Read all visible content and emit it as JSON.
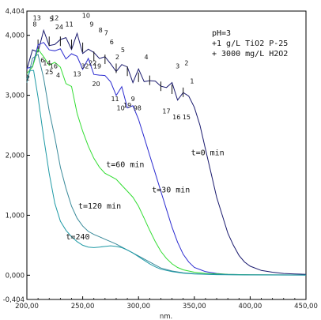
{
  "chart_data": {
    "type": "line",
    "xlabel": "nm.",
    "ylabel": "",
    "xlim": [
      200,
      450
    ],
    "ylim": [
      -404,
      4404
    ],
    "xticks": [
      "200,00",
      "250,00",
      "300,00",
      "350,00",
      "400,00",
      "450,00"
    ],
    "yticks": [
      {
        "value": -404,
        "label": "-0,404"
      },
      {
        "value": 0,
        "label": "0,000"
      },
      {
        "value": 1000,
        "label": "1,000"
      },
      {
        "value": 2000,
        "label": "2,000"
      },
      {
        "value": 3000,
        "label": "3,000"
      },
      {
        "value": 4000,
        "label": "4,000"
      },
      {
        "value": 4404,
        "label": "4,404"
      }
    ],
    "legend": {
      "position": "top-right",
      "lines": [
        "pH=3",
        "+1 g/L TiO2 P-25",
        "+ 3000 mg/L H2O2"
      ]
    },
    "series": [
      {
        "name": "t=0 min",
        "color": "#1a1a6e",
        "label_at": [
          347,
          2000
        ],
        "points": [
          [
            200,
            3400
          ],
          [
            205,
            3700
          ],
          [
            210,
            3850
          ],
          [
            215,
            3950
          ],
          [
            220,
            3900
          ],
          [
            225,
            3850
          ],
          [
            230,
            3900
          ],
          [
            235,
            3950
          ],
          [
            240,
            3850
          ],
          [
            245,
            3900
          ],
          [
            250,
            3800
          ],
          [
            255,
            3750
          ],
          [
            260,
            3650
          ],
          [
            265,
            3700
          ],
          [
            270,
            3600
          ],
          [
            275,
            3500
          ],
          [
            280,
            3450
          ],
          [
            285,
            3500
          ],
          [
            290,
            3400
          ],
          [
            295,
            3350
          ],
          [
            300,
            3300
          ],
          [
            305,
            3300
          ],
          [
            310,
            3250
          ],
          [
            315,
            3200
          ],
          [
            320,
            3150
          ],
          [
            325,
            3200
          ],
          [
            330,
            3100
          ],
          [
            335,
            3000
          ],
          [
            340,
            3050
          ],
          [
            345,
            2900
          ],
          [
            350,
            2800
          ],
          [
            355,
            2500
          ],
          [
            360,
            2100
          ],
          [
            365,
            1700
          ],
          [
            370,
            1300
          ],
          [
            375,
            1000
          ],
          [
            380,
            700
          ],
          [
            385,
            500
          ],
          [
            390,
            330
          ],
          [
            395,
            220
          ],
          [
            400,
            150
          ],
          [
            410,
            80
          ],
          [
            420,
            50
          ],
          [
            430,
            30
          ],
          [
            440,
            20
          ],
          [
            450,
            15
          ]
        ]
      },
      {
        "name": "t=30 min",
        "color": "#2b2bd0",
        "label_at": [
          312,
          1380
        ],
        "points": [
          [
            200,
            3300
          ],
          [
            205,
            3600
          ],
          [
            210,
            3800
          ],
          [
            215,
            3850
          ],
          [
            220,
            3800
          ],
          [
            225,
            3750
          ],
          [
            230,
            3700
          ],
          [
            235,
            3700
          ],
          [
            240,
            3650
          ],
          [
            245,
            3600
          ],
          [
            250,
            3550
          ],
          [
            255,
            3500
          ],
          [
            260,
            3400
          ],
          [
            265,
            3350
          ],
          [
            270,
            3300
          ],
          [
            275,
            3200
          ],
          [
            280,
            3100
          ],
          [
            285,
            3000
          ],
          [
            290,
            2900
          ],
          [
            295,
            2800
          ],
          [
            300,
            2600
          ],
          [
            305,
            2300
          ],
          [
            310,
            2000
          ],
          [
            315,
            1700
          ],
          [
            320,
            1400
          ],
          [
            325,
            1100
          ],
          [
            330,
            800
          ],
          [
            335,
            550
          ],
          [
            340,
            350
          ],
          [
            345,
            220
          ],
          [
            350,
            130
          ],
          [
            360,
            60
          ],
          [
            370,
            30
          ],
          [
            380,
            15
          ],
          [
            400,
            8
          ],
          [
            450,
            5
          ]
        ]
      },
      {
        "name": "t=60 min",
        "color": "#33dd33",
        "label_at": [
          271,
          1800
        ],
        "points": [
          [
            200,
            3350
          ],
          [
            205,
            3550
          ],
          [
            210,
            3700
          ],
          [
            215,
            3650
          ],
          [
            220,
            3550
          ],
          [
            225,
            3500
          ],
          [
            230,
            3450
          ],
          [
            235,
            3300
          ],
          [
            240,
            3000
          ],
          [
            245,
            2700
          ],
          [
            250,
            2400
          ],
          [
            255,
            2150
          ],
          [
            260,
            1950
          ],
          [
            265,
            1800
          ],
          [
            270,
            1700
          ],
          [
            275,
            1650
          ],
          [
            280,
            1600
          ],
          [
            285,
            1500
          ],
          [
            290,
            1400
          ],
          [
            295,
            1300
          ],
          [
            300,
            1150
          ],
          [
            305,
            950
          ],
          [
            310,
            750
          ],
          [
            315,
            560
          ],
          [
            320,
            400
          ],
          [
            325,
            280
          ],
          [
            330,
            190
          ],
          [
            335,
            130
          ],
          [
            340,
            90
          ],
          [
            350,
            50
          ],
          [
            360,
            30
          ],
          [
            380,
            15
          ],
          [
            400,
            8
          ],
          [
            450,
            5
          ]
        ]
      },
      {
        "name": "t=120 min",
        "color": "#3a8a9a",
        "label_at": [
          246,
          1110
        ],
        "points": [
          [
            200,
            3300
          ],
          [
            205,
            3600
          ],
          [
            210,
            3650
          ],
          [
            215,
            3300
          ],
          [
            220,
            2800
          ],
          [
            225,
            2300
          ],
          [
            230,
            1800
          ],
          [
            235,
            1450
          ],
          [
            240,
            1150
          ],
          [
            245,
            950
          ],
          [
            250,
            820
          ],
          [
            255,
            730
          ],
          [
            260,
            680
          ],
          [
            265,
            640
          ],
          [
            270,
            600
          ],
          [
            275,
            560
          ],
          [
            280,
            520
          ],
          [
            285,
            470
          ],
          [
            290,
            420
          ],
          [
            295,
            370
          ],
          [
            300,
            320
          ],
          [
            305,
            270
          ],
          [
            310,
            220
          ],
          [
            315,
            170
          ],
          [
            320,
            120
          ],
          [
            330,
            70
          ],
          [
            340,
            40
          ],
          [
            350,
            25
          ],
          [
            370,
            12
          ],
          [
            400,
            6
          ],
          [
            450,
            3
          ]
        ]
      },
      {
        "name": "t=240",
        "color": "#1f9aa6",
        "label_at": [
          235,
          600
        ],
        "points": [
          [
            200,
            3300
          ],
          [
            203,
            3500
          ],
          [
            206,
            3300
          ],
          [
            210,
            2900
          ],
          [
            215,
            2300
          ],
          [
            220,
            1700
          ],
          [
            225,
            1200
          ],
          [
            230,
            900
          ],
          [
            235,
            750
          ],
          [
            240,
            640
          ],
          [
            245,
            560
          ],
          [
            250,
            500
          ],
          [
            255,
            470
          ],
          [
            260,
            460
          ],
          [
            265,
            470
          ],
          [
            270,
            480
          ],
          [
            275,
            490
          ],
          [
            280,
            480
          ],
          [
            285,
            460
          ],
          [
            290,
            420
          ],
          [
            295,
            370
          ],
          [
            300,
            310
          ],
          [
            305,
            250
          ],
          [
            310,
            190
          ],
          [
            315,
            140
          ],
          [
            320,
            100
          ],
          [
            330,
            60
          ],
          [
            340,
            35
          ],
          [
            350,
            20
          ],
          [
            370,
            10
          ],
          [
            400,
            5
          ],
          [
            450,
            2
          ]
        ]
      }
    ],
    "peak_labels": [
      {
        "text": "8",
        "x": 207,
        "y": 4150
      },
      {
        "text": "13",
        "x": 209,
        "y": 4250
      },
      {
        "text": "2",
        "x": 201,
        "y": 3250
      },
      {
        "text": "6",
        "x": 214,
        "y": 3550
      },
      {
        "text": "14",
        "x": 218,
        "y": 3500
      },
      {
        "text": "5",
        "x": 222,
        "y": 4230
      },
      {
        "text": "12",
        "x": 225,
        "y": 4250
      },
      {
        "text": "25",
        "x": 220,
        "y": 3350
      },
      {
        "text": "16",
        "x": 224,
        "y": 3450
      },
      {
        "text": "4",
        "x": 228,
        "y": 3300
      },
      {
        "text": "24",
        "x": 229,
        "y": 4100
      },
      {
        "text": "11",
        "x": 238,
        "y": 4150
      },
      {
        "text": "10",
        "x": 253,
        "y": 4290
      },
      {
        "text": "9",
        "x": 258,
        "y": 4150
      },
      {
        "text": "8",
        "x": 266,
        "y": 4050
      },
      {
        "text": "7",
        "x": 271,
        "y": 4000
      },
      {
        "text": "6",
        "x": 276,
        "y": 3850
      },
      {
        "text": "13",
        "x": 245,
        "y": 3320
      },
      {
        "text": "32",
        "x": 252,
        "y": 3450
      },
      {
        "text": "22",
        "x": 259,
        "y": 3500
      },
      {
        "text": "19",
        "x": 263,
        "y": 3450
      },
      {
        "text": "20",
        "x": 262,
        "y": 3150
      },
      {
        "text": "5",
        "x": 286,
        "y": 3720
      },
      {
        "text": "2",
        "x": 281,
        "y": 3600
      },
      {
        "text": "11",
        "x": 279,
        "y": 2900
      },
      {
        "text": "10",
        "x": 284,
        "y": 2750
      },
      {
        "text": "19",
        "x": 290,
        "y": 2800
      },
      {
        "text": "9",
        "x": 295,
        "y": 2900
      },
      {
        "text": "98",
        "x": 299,
        "y": 2750
      },
      {
        "text": "4",
        "x": 307,
        "y": 3600
      },
      {
        "text": "3",
        "x": 335,
        "y": 3450
      },
      {
        "text": "2",
        "x": 343,
        "y": 3500
      },
      {
        "text": "1",
        "x": 348,
        "y": 3200
      },
      {
        "text": "17",
        "x": 325,
        "y": 2700
      },
      {
        "text": "16",
        "x": 334,
        "y": 2600
      },
      {
        "text": "15",
        "x": 343,
        "y": 2600
      }
    ]
  }
}
